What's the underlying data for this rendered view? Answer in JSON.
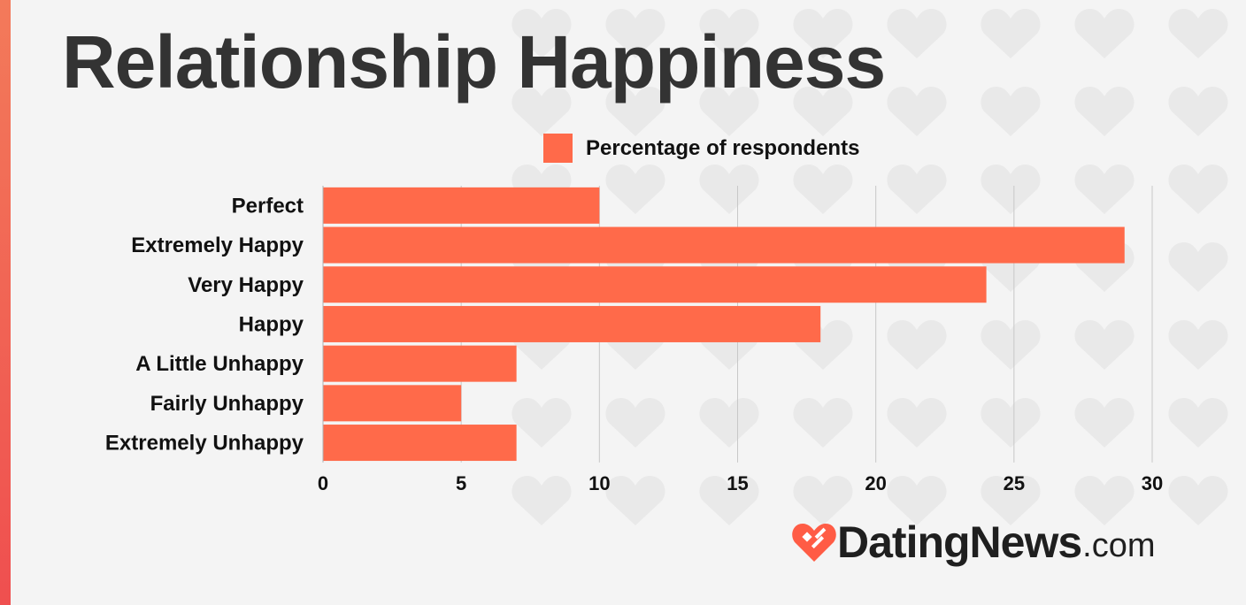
{
  "page": {
    "title": "Relationship Happiness",
    "brand": {
      "name_main": "DatingNews",
      "name_suffix": ".com"
    }
  },
  "colors": {
    "bar": "#ff6a4a",
    "title": "#333333",
    "grid": "#c8c8c8",
    "background": "#f4f4f4"
  },
  "chart_data": {
    "type": "bar",
    "orientation": "horizontal",
    "title": "Relationship Happiness",
    "categories": [
      "Perfect",
      "Extremely Happy",
      "Very Happy",
      "Happy",
      "A Little Unhappy",
      "Fairly Unhappy",
      "Extremely Unhappy"
    ],
    "series": [
      {
        "name": "Percentage of respondents",
        "values": [
          10,
          29,
          24,
          18,
          7,
          5,
          7
        ]
      }
    ],
    "xlim": [
      0,
      30
    ],
    "xticks": [
      0,
      5,
      10,
      15,
      20,
      25,
      30
    ],
    "xlabel": "",
    "ylabel": "",
    "grid": "vertical",
    "legend": "top"
  }
}
